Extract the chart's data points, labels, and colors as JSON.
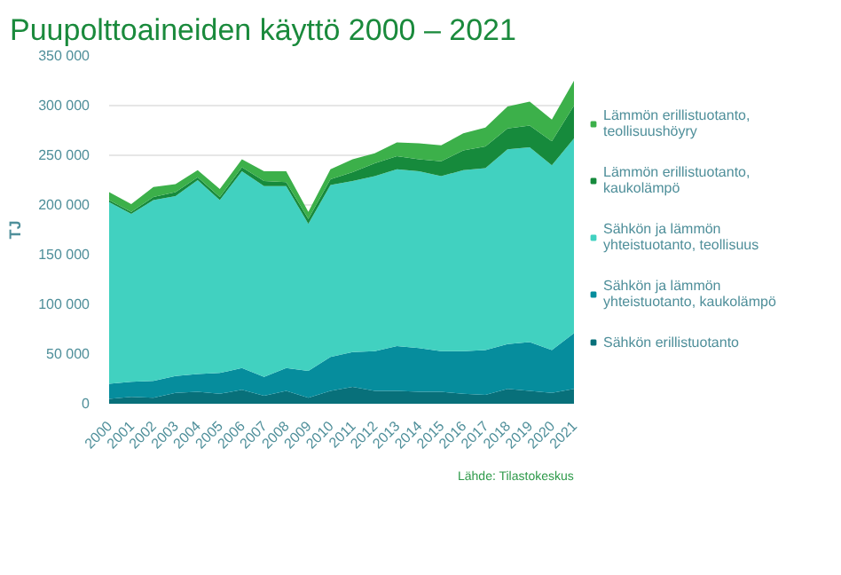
{
  "chart_data": {
    "type": "area",
    "stacked": true,
    "title": "Puupolttoaineiden käyttö 2000 – 2021",
    "ylabel": "TJ",
    "categories": [
      "2000",
      "2001",
      "2002",
      "2003",
      "2004",
      "2005",
      "2006",
      "2007",
      "2008",
      "2009",
      "2010",
      "2011",
      "2012",
      "2013",
      "2014",
      "2015",
      "2016",
      "2017",
      "2018",
      "2019",
      "2020",
      "2021"
    ],
    "series": [
      {
        "name": "Sähkön erillistuotanto",
        "color": "#08707a",
        "values": [
          5000,
          7000,
          6000,
          11000,
          12000,
          10000,
          14000,
          8000,
          13000,
          6000,
          13000,
          17000,
          13000,
          13000,
          12000,
          12000,
          10000,
          9000,
          15000,
          13000,
          11000,
          15000
        ]
      },
      {
        "name": "Sähkön ja lämmön yhteistuotanto, kaukolämpö",
        "color": "#068d9d",
        "values": [
          15000,
          15000,
          17000,
          17000,
          18000,
          21000,
          22000,
          19000,
          23000,
          27000,
          34000,
          35000,
          40000,
          45000,
          44000,
          41000,
          43000,
          45000,
          45000,
          49000,
          43000,
          56000
        ]
      },
      {
        "name": "Sähkön ja lämmön yhteistuotanto, teollisuus",
        "color": "#41d1c0",
        "values": [
          183000,
          169000,
          182000,
          181000,
          195000,
          174000,
          198000,
          192000,
          183000,
          148000,
          173000,
          172000,
          176000,
          178000,
          178000,
          176000,
          182000,
          183000,
          196000,
          196000,
          186000,
          196000
        ]
      },
      {
        "name": "Lämmön erillistuotanto, kaukolämpö",
        "color": "#168a3c",
        "values": [
          2000,
          2000,
          3000,
          4000,
          3000,
          3000,
          4000,
          5000,
          4000,
          5000,
          6000,
          9000,
          13000,
          13000,
          12000,
          15000,
          20000,
          22000,
          21000,
          22000,
          24000,
          33000
        ]
      },
      {
        "name": "Lämmön erillistuotanto, teollisuushöyry",
        "color": "#3cb04a",
        "values": [
          8000,
          8000,
          10000,
          8000,
          7000,
          8000,
          8000,
          10000,
          11000,
          7000,
          10000,
          13000,
          10000,
          14000,
          16000,
          16000,
          17000,
          19000,
          22000,
          24000,
          22000,
          25000
        ]
      }
    ],
    "ylim": [
      0,
      350000
    ],
    "yticks": [
      {
        "value": 0,
        "label": "0"
      },
      {
        "value": 50000,
        "label": "50 000"
      },
      {
        "value": 100000,
        "label": "100 000"
      },
      {
        "value": 150000,
        "label": "150 000"
      },
      {
        "value": 200000,
        "label": "200 000"
      },
      {
        "value": 250000,
        "label": "250 000"
      },
      {
        "value": 300000,
        "label": "300 000"
      },
      {
        "value": 350000,
        "label": "350 000"
      }
    ],
    "grid": "y",
    "legend": "right",
    "annotations": [
      "Lähde: Tilastokeskus"
    ]
  }
}
